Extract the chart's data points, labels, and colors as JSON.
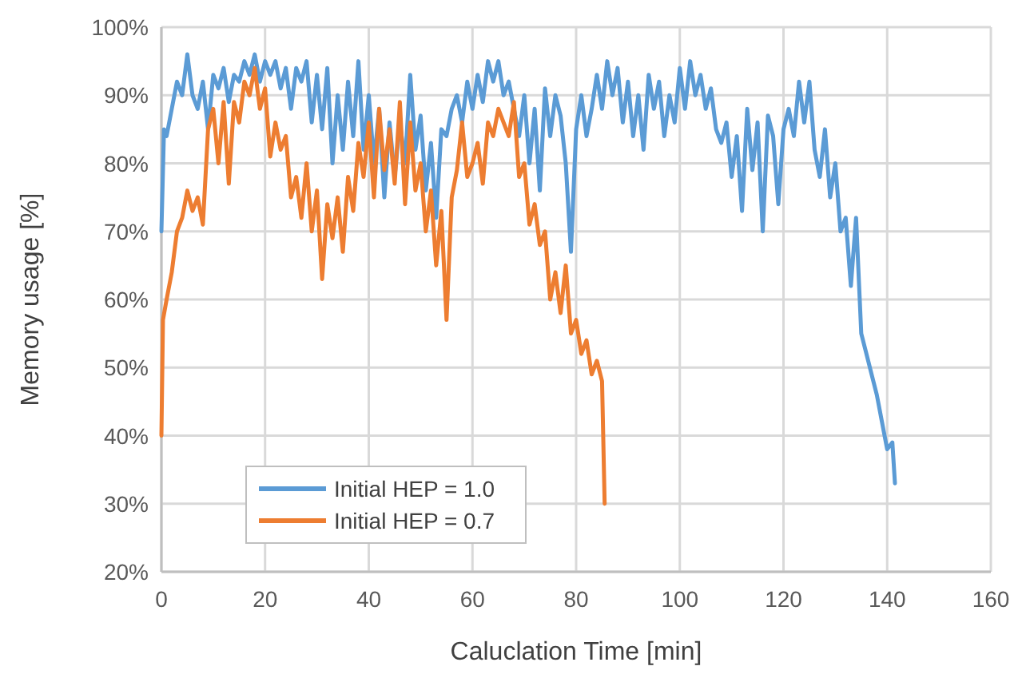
{
  "chart_data": {
    "type": "line",
    "xlabel": "Caluclation Time [min]",
    "ylabel": "Memory usage [%]",
    "xlim": [
      0,
      160
    ],
    "xticks": [
      0,
      20,
      40,
      60,
      80,
      100,
      120,
      140,
      160
    ],
    "ylim": [
      20,
      100
    ],
    "yticks": [
      {
        "value": 20,
        "label": "20%"
      },
      {
        "value": 30,
        "label": "30%"
      },
      {
        "value": 40,
        "label": "40%"
      },
      {
        "value": 50,
        "label": "50%"
      },
      {
        "value": 60,
        "label": "60%"
      },
      {
        "value": 70,
        "label": "70%"
      },
      {
        "value": 80,
        "label": "80%"
      },
      {
        "value": 90,
        "label": "90%"
      },
      {
        "value": 100,
        "label": "100%"
      }
    ],
    "grid": true,
    "legend": "bottom left",
    "marker": "none",
    "line_style": "solid",
    "series": [
      {
        "name": "Initial HEP = 1.0",
        "color": "#5b9bd5",
        "x": [
          0,
          0.5,
          1,
          2,
          3,
          4,
          5,
          6,
          7,
          8,
          9,
          10,
          11,
          12,
          13,
          14,
          15,
          16,
          17,
          18,
          19,
          20,
          21,
          22,
          23,
          24,
          25,
          26,
          27,
          28,
          29,
          30,
          31,
          32,
          33,
          34,
          35,
          36,
          37,
          38,
          39,
          40,
          41,
          42,
          43,
          44,
          45,
          46,
          47,
          48,
          49,
          50,
          51,
          52,
          53,
          54,
          55,
          56,
          57,
          58,
          59,
          60,
          61,
          62,
          63,
          64,
          65,
          66,
          67,
          68,
          69,
          70,
          71,
          72,
          73,
          74,
          75,
          76,
          77,
          78,
          79,
          80,
          81,
          82,
          83,
          84,
          85,
          86,
          87,
          88,
          89,
          90,
          91,
          92,
          93,
          94,
          95,
          96,
          97,
          98,
          99,
          100,
          101,
          102,
          103,
          104,
          105,
          106,
          107,
          108,
          109,
          110,
          111,
          112,
          113,
          114,
          115,
          116,
          117,
          118,
          119,
          120,
          121,
          122,
          123,
          124,
          125,
          126,
          127,
          128,
          129,
          130,
          131,
          132,
          133,
          134,
          135,
          136,
          137,
          138,
          139,
          140,
          141,
          141.5
        ],
        "values": [
          70,
          85,
          84,
          88,
          92,
          90,
          96,
          90,
          88,
          92,
          85,
          93,
          91,
          94,
          89,
          93,
          92,
          95,
          93,
          96,
          92,
          95,
          93,
          95,
          91,
          94,
          88,
          94,
          92,
          95,
          86,
          93,
          85,
          94,
          80,
          90,
          82,
          92,
          84,
          95,
          82,
          90,
          80,
          88,
          75,
          86,
          78,
          86,
          80,
          93,
          82,
          87,
          76,
          83,
          72,
          85,
          84,
          88,
          90,
          86,
          92,
          88,
          93,
          89,
          95,
          92,
          95,
          90,
          92,
          88,
          84,
          90,
          80,
          88,
          76,
          91,
          84,
          90,
          87,
          80,
          67,
          85,
          90,
          84,
          88,
          93,
          88,
          95,
          90,
          94,
          86,
          92,
          84,
          90,
          82,
          93,
          88,
          92,
          84,
          90,
          86,
          94,
          88,
          95,
          90,
          93,
          88,
          91,
          85,
          83,
          86,
          78,
          84,
          73,
          88,
          79,
          86,
          70,
          87,
          84,
          74,
          85,
          88,
          84,
          92,
          86,
          92,
          82,
          78,
          85,
          75,
          80,
          70,
          72,
          62,
          72,
          55,
          52,
          49,
          46,
          42,
          38,
          39,
          33
        ]
      },
      {
        "name": "Initial HEP = 0.7",
        "color": "#ed7d31",
        "x": [
          0,
          0.3,
          1,
          2,
          3,
          4,
          5,
          6,
          7,
          8,
          9,
          10,
          11,
          12,
          13,
          14,
          15,
          16,
          17,
          18,
          19,
          20,
          21,
          22,
          23,
          24,
          25,
          26,
          27,
          28,
          29,
          30,
          31,
          32,
          33,
          34,
          35,
          36,
          37,
          38,
          39,
          40,
          41,
          42,
          43,
          44,
          45,
          46,
          47,
          48,
          49,
          50,
          51,
          52,
          53,
          54,
          55,
          56,
          57,
          58,
          59,
          60,
          61,
          62,
          63,
          64,
          65,
          66,
          67,
          68,
          69,
          70,
          71,
          72,
          73,
          74,
          75,
          76,
          77,
          78,
          79,
          80,
          81,
          82,
          83,
          84,
          85,
          85.5
        ],
        "values": [
          40,
          57,
          60,
          64,
          70,
          72,
          76,
          73,
          75,
          71,
          85,
          88,
          80,
          89,
          77,
          89,
          86,
          92,
          90,
          94,
          88,
          91,
          81,
          86,
          82,
          84,
          75,
          78,
          72,
          80,
          70,
          76,
          63,
          74,
          69,
          75,
          67,
          78,
          73,
          83,
          78,
          86,
          75,
          88,
          79,
          85,
          77,
          89,
          74,
          86,
          76,
          80,
          70,
          76,
          65,
          73,
          57,
          75,
          79,
          86,
          78,
          80,
          83,
          77,
          86,
          84,
          88,
          86,
          84,
          89,
          78,
          80,
          71,
          74,
          68,
          70,
          60,
          64,
          58,
          65,
          55,
          57,
          52,
          54,
          49,
          51,
          48,
          30
        ]
      }
    ]
  }
}
